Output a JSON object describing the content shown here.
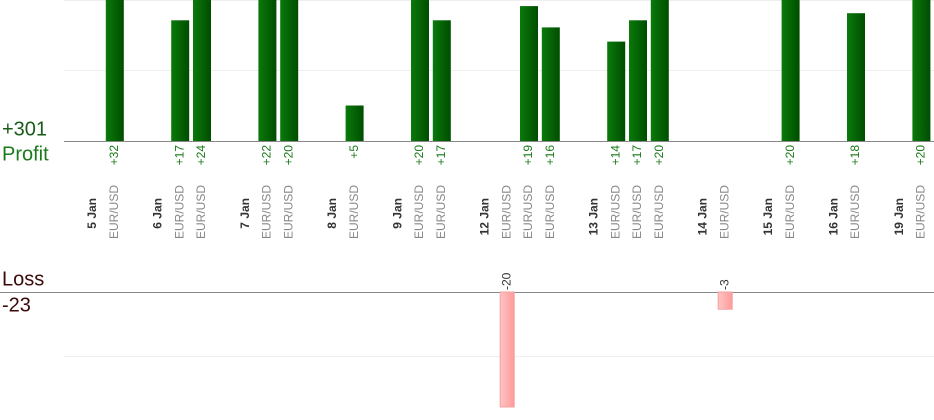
{
  "chart_data": {
    "type": "profit-loss-bars",
    "profit_label": "Profit",
    "profit_total": {
      "value": 301,
      "label": "+301"
    },
    "loss_label": "Loss",
    "loss_total": -23,
    "days": [
      {
        "date": "5 Jan",
        "pairs": [
          "EUR/USD"
        ],
        "values": [
          32
        ],
        "value_labels": [
          "+32"
        ]
      },
      {
        "date": "6 Jan",
        "pairs": [
          "EUR/USD",
          "EUR/USD"
        ],
        "values": [
          17,
          24
        ],
        "value_labels": [
          "+17",
          "+24"
        ]
      },
      {
        "date": "7 Jan",
        "pairs": [
          "EUR/USD",
          "EUR/USD"
        ],
        "values": [
          22,
          20
        ],
        "value_labels": [
          "+22",
          "+20"
        ]
      },
      {
        "date": "8 Jan",
        "pairs": [
          "EUR/USD"
        ],
        "values": [
          5
        ],
        "value_labels": [
          "+5"
        ]
      },
      {
        "date": "9 Jan",
        "pairs": [
          "EUR/USD",
          "EUR/USD"
        ],
        "values": [
          20,
          17
        ],
        "value_labels": [
          "+20",
          "+17"
        ]
      },
      {
        "date": "12 Jan",
        "pairs": [
          "EUR/USD",
          "EUR/USD",
          "EUR/USD"
        ],
        "values": [
          -20,
          19,
          16
        ],
        "value_labels": [
          "-20",
          "+19",
          "+16"
        ]
      },
      {
        "date": "13 Jan",
        "pairs": [
          "EUR/USD",
          "EUR/USD",
          "EUR/USD"
        ],
        "values": [
          14,
          17,
          20
        ],
        "value_labels": [
          "+14",
          "+17",
          "+20"
        ]
      },
      {
        "date": "14 Jan",
        "pairs": [
          "EUR/USD"
        ],
        "values": [
          -3
        ],
        "value_labels": [
          "-3"
        ]
      },
      {
        "date": "15 Jan",
        "pairs": [
          "EUR/USD"
        ],
        "values": [
          20
        ],
        "value_labels": [
          "+20"
        ]
      },
      {
        "date": "16 Jan",
        "pairs": [
          "EUR/USD"
        ],
        "values": [
          18
        ],
        "value_labels": [
          "+18"
        ]
      },
      {
        "date": "19 Jan",
        "pairs": [
          "EUR/USD"
        ],
        "values": [
          20
        ],
        "value_labels": [
          "+20"
        ]
      }
    ]
  }
}
